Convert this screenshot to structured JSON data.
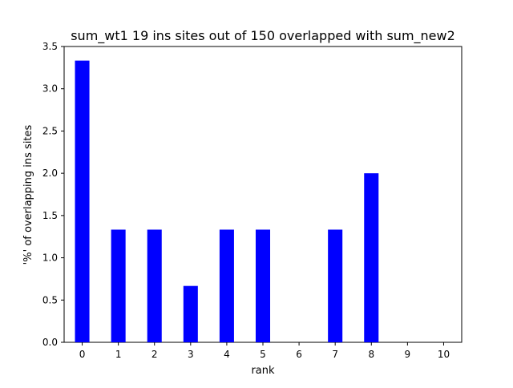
{
  "chart_data": {
    "type": "bar",
    "title": "sum_wt1 19 ins sites out of 150 overlapped with sum_new2",
    "xlabel": "rank",
    "ylabel": "'%' of overlapping ins sites",
    "categories": [
      "0",
      "1",
      "2",
      "3",
      "4",
      "5",
      "6",
      "7",
      "8",
      "9",
      "10"
    ],
    "values": [
      3.333,
      1.333,
      1.333,
      0.667,
      1.333,
      1.333,
      0,
      1.333,
      2.0,
      0,
      0
    ],
    "ylim": [
      0,
      3.5
    ],
    "xlim": [
      -0.5,
      10.5
    ],
    "yticks": [
      "0.0",
      "0.5",
      "1.0",
      "1.5",
      "2.0",
      "2.5",
      "3.0",
      "3.5"
    ],
    "bar_color": "#0000ff",
    "grid": false,
    "legend": "none"
  }
}
